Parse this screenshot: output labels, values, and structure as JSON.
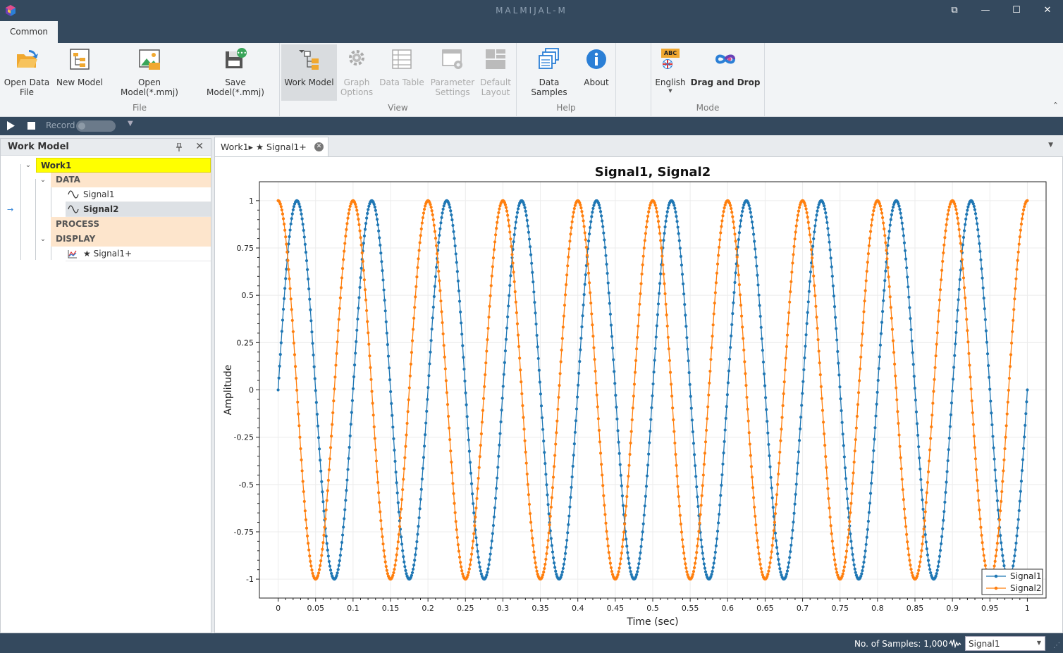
{
  "app": {
    "title": "MALMIJAL-M",
    "window_buttons": [
      "⧉",
      "—",
      "☐",
      "✕"
    ]
  },
  "ribbon": {
    "tab": "Common",
    "groups": {
      "file": "File",
      "view": "View",
      "help": "Help",
      "mode": "Mode"
    },
    "buttons": {
      "open_data_file_1": "Open Data",
      "open_data_file_2": "File",
      "new_model": "New Model",
      "open_model": "Open Model(*.mmj)",
      "save_model": "Save Model(*.mmj)",
      "work_model": "Work Model",
      "graph_options_1": "Graph",
      "graph_options_2": "Options",
      "data_table": "Data Table",
      "parameter_settings_1": "Parameter",
      "parameter_settings_2": "Settings",
      "default_layout_1": "Default",
      "default_layout_2": "Layout",
      "data_samples": "Data Samples",
      "about": "About",
      "english": "English",
      "abc_badge": "ABC",
      "drag_and_drop": "Drag and Drop"
    },
    "collapse_glyph": "⌃"
  },
  "record": {
    "label": "Record"
  },
  "work_model_panel": {
    "title": "Work Model",
    "tree": {
      "root": "Work1",
      "data": "DATA",
      "signal1": "Signal1",
      "signal2": "Signal2",
      "process": "PROCESS",
      "display": "DISPLAY",
      "display_item": "★ Signal1+"
    },
    "current_arrow": "→"
  },
  "doc_tab": {
    "label": "Work1▸ ★ Signal1+"
  },
  "status": {
    "samples": "No. of Samples: 1,000",
    "selected_signal": "Signal1"
  },
  "colors": {
    "signal1": "#1f77b4",
    "signal2": "#ff7f0e",
    "chrome": "#34495e",
    "ribbon": "#f2f4f6",
    "root_highlight": "#ffff00",
    "category_fill": "#fde5cc"
  },
  "icons": {
    "app_logo": "cube-logo-icon",
    "open_data_file": "folder-open-icon",
    "new_model": "tree-document-icon",
    "open_model": "image-open-icon",
    "save_model": "save-disk-icon",
    "work_model": "tree-structure-icon",
    "graph_options": "gear-icon",
    "data_table": "table-icon",
    "parameter_settings": "settings-window-icon",
    "default_layout": "layout-grid-icon",
    "data_samples": "stacked-windows-icon",
    "about": "info-icon",
    "english": "language-flag-icon",
    "drag_and_drop": "infinity-icon"
  },
  "chart_data": {
    "type": "line",
    "title": "Signal1, Signal2",
    "xlabel": "Time (sec)",
    "ylabel": "Amplitude",
    "xlim": [
      -0.025,
      1.025
    ],
    "ylim": [
      -1.1,
      1.1
    ],
    "x_ticks": [
      0,
      0.05,
      0.1,
      0.15,
      0.2,
      0.25,
      0.3,
      0.35,
      0.4,
      0.45,
      0.5,
      0.55,
      0.6,
      0.65,
      0.7,
      0.75,
      0.8,
      0.85,
      0.9,
      0.95,
      1
    ],
    "x_tick_labels": [
      "0",
      "0.05",
      "0.1",
      "0.15",
      "0.2",
      "0.25",
      "0.3",
      "0.35",
      "0.4",
      "0.45",
      "0.5",
      "0.55",
      "0.6",
      "0.65",
      "0.7",
      "0.75",
      "0.8",
      "0.85",
      "0.9",
      "0.95",
      "1"
    ],
    "y_ticks": [
      -1,
      -0.75,
      -0.5,
      -0.25,
      0,
      0.25,
      0.5,
      0.75,
      1
    ],
    "y_tick_labels": [
      "-1",
      "-0.75",
      "-0.5",
      "-0.25",
      "0",
      "0.25",
      "0.5",
      "0.75",
      "1"
    ],
    "grid": true,
    "legend_position": "bottom-right",
    "samples": 1000,
    "series": [
      {
        "name": "Signal1",
        "color": "#1f77b4",
        "x_start": 0,
        "x_end": 1,
        "points": 1000,
        "function": "sin",
        "frequency_hz": 10,
        "amplitude": 1
      },
      {
        "name": "Signal2",
        "color": "#ff7f0e",
        "x_start": 0,
        "x_end": 1,
        "points": 1000,
        "function": "cos",
        "frequency_hz": 10,
        "amplitude": 1
      }
    ]
  }
}
